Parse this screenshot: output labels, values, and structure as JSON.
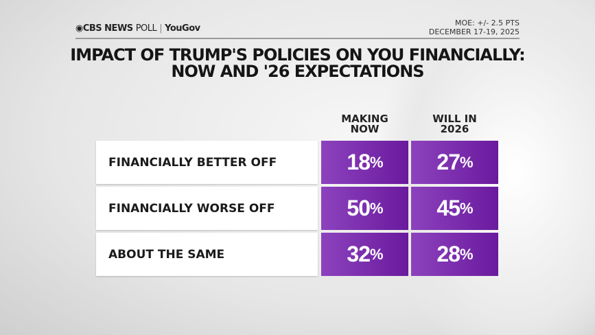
{
  "header": {
    "logo_brand": "CBS NEWS",
    "logo_poll": "POLL",
    "logo_partner": "YouGov",
    "moe": "MOE: +/- 2.5 PTS",
    "dates": "DECEMBER 17-19, 2025"
  },
  "title_line1": "IMPACT OF TRUMP'S POLICIES ON YOU FINANCIALLY:",
  "title_line2": "NOW AND '26 EXPECTATIONS",
  "colors": {
    "cell_start": "#8c42bd",
    "cell_end": "#6a1a9e"
  },
  "chart_data": {
    "type": "table",
    "title": "IMPACT OF TRUMP'S POLICIES ON YOU FINANCIALLY: NOW AND '26 EXPECTATIONS",
    "columns": [
      "MAKING NOW",
      "WILL IN 2026"
    ],
    "column_lines": [
      [
        "MAKING",
        "NOW"
      ],
      [
        "WILL IN",
        "2026"
      ]
    ],
    "rows": [
      {
        "label": "FINANCIALLY BETTER OFF",
        "values": [
          18,
          27
        ]
      },
      {
        "label": "FINANCIALLY WORSE OFF",
        "values": [
          50,
          45
        ]
      },
      {
        "label": "ABOUT THE SAME",
        "values": [
          32,
          28
        ]
      }
    ],
    "unit": "%"
  }
}
